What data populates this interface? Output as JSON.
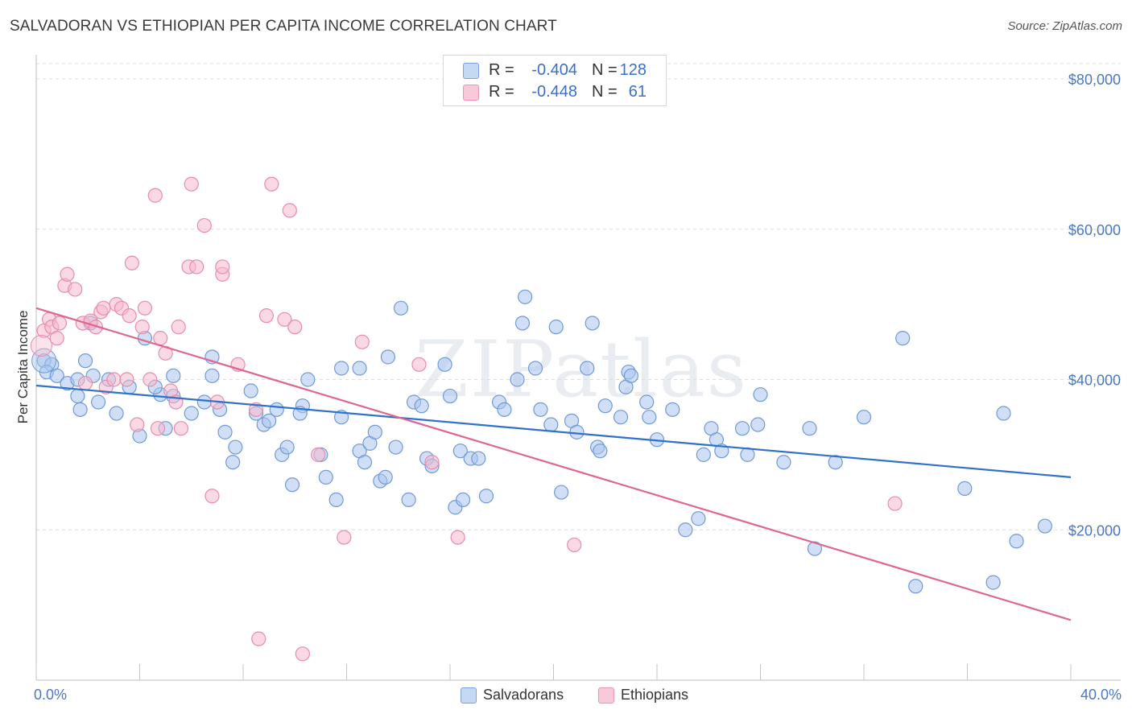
{
  "header": {
    "title": "SALVADORAN VS ETHIOPIAN PER CAPITA INCOME CORRELATION CHART",
    "source": "Source: ZipAtlas.com"
  },
  "watermark": "ZIPatlas",
  "legend": {
    "rows": [
      {
        "r_label": "R =",
        "r_value": "-0.404",
        "n_label": "N =",
        "n_value": "128"
      },
      {
        "r_label": "R =",
        "r_value": "-0.448",
        "n_label": "N =",
        "n_value": "61"
      }
    ],
    "bottom": [
      {
        "label": "Salvadorans"
      },
      {
        "label": "Ethiopians"
      }
    ]
  },
  "colors": {
    "blue_fill": "#a9c5ee",
    "blue_stroke": "#6f9ad8",
    "blue_line": "#2f72cc",
    "pink_fill": "#f6b9cd",
    "pink_stroke": "#e88cab",
    "pink_line": "#e0658f",
    "grid": "#dcdcdc",
    "axis_label": "#4a78c2"
  },
  "chart_data": {
    "type": "scatter",
    "title": "SALVADORAN VS ETHIOPIAN PER CAPITA INCOME CORRELATION CHART",
    "ylabel": "Per Capita Income",
    "xlim": [
      0,
      40
    ],
    "ylim": [
      0,
      80000
    ],
    "x_tick_labels": [
      "0.0%",
      "40.0%"
    ],
    "y_ticks": [
      20000,
      40000,
      60000,
      80000
    ],
    "y_tick_labels": [
      "$20,000",
      "$40,000",
      "$60,000",
      "$80,000"
    ],
    "grid": true,
    "legend_position": "top-center",
    "series": [
      {
        "name": "Salvadorans",
        "r": -0.404,
        "n": 128,
        "trend": {
          "x0": 0,
          "y0": 39200,
          "x1": 40,
          "y1": 27000
        },
        "points": [
          [
            0.3,
            42500
          ],
          [
            0.6,
            42000
          ],
          [
            0.4,
            41000
          ],
          [
            0.8,
            40500
          ],
          [
            1.2,
            39500
          ],
          [
            1.6,
            40000
          ],
          [
            1.9,
            42500
          ],
          [
            2.2,
            40500
          ],
          [
            2.8,
            40000
          ],
          [
            3.6,
            39000
          ],
          [
            3.1,
            35500
          ],
          [
            2.4,
            37000
          ],
          [
            1.7,
            36000
          ],
          [
            1.6,
            37800
          ],
          [
            2.1,
            47500
          ],
          [
            4.2,
            45500
          ],
          [
            4.8,
            38000
          ],
          [
            5.3,
            37800
          ],
          [
            5.3,
            40500
          ],
          [
            4.6,
            39000
          ],
          [
            5.0,
            33500
          ],
          [
            4.0,
            32500
          ],
          [
            6.0,
            35500
          ],
          [
            6.8,
            43000
          ],
          [
            6.8,
            40500
          ],
          [
            6.5,
            37000
          ],
          [
            7.1,
            36000
          ],
          [
            7.3,
            33000
          ],
          [
            7.7,
            31000
          ],
          [
            7.6,
            29000
          ],
          [
            8.3,
            38500
          ],
          [
            8.5,
            35500
          ],
          [
            8.8,
            34000
          ],
          [
            9.0,
            34500
          ],
          [
            9.3,
            36000
          ],
          [
            9.5,
            30000
          ],
          [
            9.7,
            31000
          ],
          [
            9.9,
            26000
          ],
          [
            10.3,
            36500
          ],
          [
            10.5,
            40000
          ],
          [
            10.2,
            35500
          ],
          [
            11.0,
            30000
          ],
          [
            11.2,
            27000
          ],
          [
            11.6,
            24000
          ],
          [
            11.8,
            35000
          ],
          [
            11.8,
            41500
          ],
          [
            12.5,
            41500
          ],
          [
            12.5,
            30500
          ],
          [
            12.7,
            29000
          ],
          [
            12.9,
            31500
          ],
          [
            13.1,
            33000
          ],
          [
            13.3,
            26500
          ],
          [
            13.5,
            27000
          ],
          [
            13.6,
            43000
          ],
          [
            13.9,
            31000
          ],
          [
            14.1,
            49500
          ],
          [
            14.4,
            24000
          ],
          [
            14.6,
            37000
          ],
          [
            14.9,
            36500
          ],
          [
            15.1,
            29500
          ],
          [
            15.3,
            28500
          ],
          [
            15.8,
            42000
          ],
          [
            16.0,
            37800
          ],
          [
            16.2,
            23000
          ],
          [
            16.4,
            30500
          ],
          [
            16.5,
            24000
          ],
          [
            16.8,
            29500
          ],
          [
            17.1,
            29500
          ],
          [
            17.4,
            24500
          ],
          [
            17.9,
            37000
          ],
          [
            18.1,
            36000
          ],
          [
            18.6,
            40000
          ],
          [
            18.8,
            47500
          ],
          [
            18.9,
            51000
          ],
          [
            19.3,
            41500
          ],
          [
            19.5,
            36000
          ],
          [
            19.9,
            34000
          ],
          [
            20.1,
            47000
          ],
          [
            20.3,
            25000
          ],
          [
            20.7,
            34500
          ],
          [
            20.9,
            33000
          ],
          [
            21.3,
            41500
          ],
          [
            21.5,
            47500
          ],
          [
            21.7,
            31000
          ],
          [
            21.8,
            30500
          ],
          [
            22.0,
            36500
          ],
          [
            22.6,
            35000
          ],
          [
            22.8,
            39000
          ],
          [
            22.9,
            41000
          ],
          [
            23.0,
            40500
          ],
          [
            23.6,
            37000
          ],
          [
            23.7,
            35000
          ],
          [
            24.0,
            32000
          ],
          [
            24.6,
            36000
          ],
          [
            25.1,
            20000
          ],
          [
            25.6,
            21500
          ],
          [
            25.8,
            30000
          ],
          [
            26.1,
            33500
          ],
          [
            26.3,
            32000
          ],
          [
            26.5,
            30500
          ],
          [
            27.3,
            33500
          ],
          [
            27.5,
            30000
          ],
          [
            27.9,
            34000
          ],
          [
            28.0,
            38000
          ],
          [
            28.9,
            29000
          ],
          [
            29.9,
            33500
          ],
          [
            30.1,
            17500
          ],
          [
            30.9,
            29000
          ],
          [
            32.0,
            35000
          ],
          [
            33.5,
            45500
          ],
          [
            34.0,
            12500
          ],
          [
            35.9,
            25500
          ],
          [
            37.0,
            13000
          ],
          [
            37.4,
            35500
          ],
          [
            37.9,
            18500
          ],
          [
            39.0,
            20500
          ]
        ]
      },
      {
        "name": "Ethiopians",
        "r": -0.448,
        "n": 61,
        "trend": {
          "x0": 0,
          "y0": 49500,
          "x1": 40,
          "y1": 8000
        },
        "points": [
          [
            0.3,
            46500
          ],
          [
            0.5,
            48000
          ],
          [
            0.6,
            47000
          ],
          [
            0.8,
            45500
          ],
          [
            0.9,
            47500
          ],
          [
            1.1,
            52500
          ],
          [
            1.2,
            54000
          ],
          [
            1.5,
            52000
          ],
          [
            1.8,
            47500
          ],
          [
            1.9,
            39500
          ],
          [
            2.1,
            47800
          ],
          [
            2.3,
            47000
          ],
          [
            2.5,
            49000
          ],
          [
            2.6,
            49500
          ],
          [
            2.7,
            39000
          ],
          [
            3.0,
            40000
          ],
          [
            3.1,
            50000
          ],
          [
            3.3,
            49500
          ],
          [
            3.5,
            40000
          ],
          [
            3.6,
            48500
          ],
          [
            3.7,
            55500
          ],
          [
            3.9,
            34000
          ],
          [
            4.1,
            47000
          ],
          [
            4.2,
            49500
          ],
          [
            4.4,
            40000
          ],
          [
            4.6,
            64500
          ],
          [
            4.7,
            33500
          ],
          [
            4.8,
            45500
          ],
          [
            5.0,
            43500
          ],
          [
            5.2,
            38500
          ],
          [
            5.4,
            37000
          ],
          [
            5.5,
            47000
          ],
          [
            5.6,
            33500
          ],
          [
            5.9,
            55000
          ],
          [
            6.2,
            55000
          ],
          [
            6.5,
            60500
          ],
          [
            6.0,
            66000
          ],
          [
            6.8,
            24500
          ],
          [
            7.0,
            37000
          ],
          [
            7.2,
            54000
          ],
          [
            7.2,
            55000
          ],
          [
            7.8,
            42000
          ],
          [
            8.5,
            36000
          ],
          [
            8.6,
            5500
          ],
          [
            8.9,
            48500
          ],
          [
            9.1,
            66000
          ],
          [
            9.6,
            48000
          ],
          [
            9.8,
            62500
          ],
          [
            10.0,
            47000
          ],
          [
            10.3,
            3500
          ],
          [
            10.9,
            30000
          ],
          [
            11.9,
            19000
          ],
          [
            12.6,
            45000
          ],
          [
            14.8,
            42000
          ],
          [
            15.3,
            29000
          ],
          [
            16.3,
            19000
          ],
          [
            20.8,
            18000
          ],
          [
            33.2,
            23500
          ]
        ]
      }
    ]
  }
}
